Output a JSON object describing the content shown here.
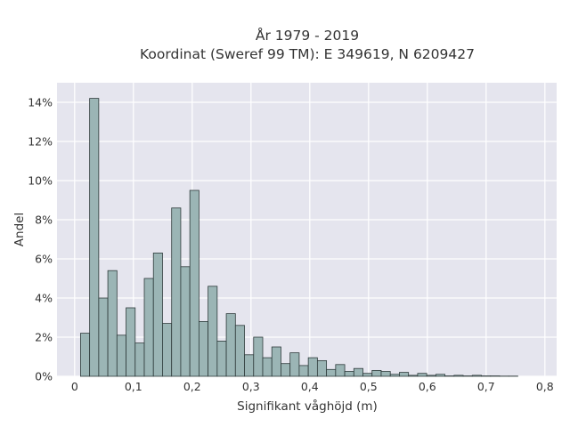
{
  "chart_data": {
    "type": "bar",
    "title": "År 1979 - 2019",
    "subtitle": "Koordinat (Sweref 99 TM): E 349619, N 6209427",
    "xlabel": "Signifikant våghöjd (m)",
    "ylabel": "Andel",
    "xlim": [
      -0.03,
      0.82
    ],
    "ylim": [
      0,
      15
    ],
    "x_ticks": [
      0,
      0.1,
      0.2,
      0.3,
      0.4,
      0.5,
      0.6,
      0.7,
      0.8
    ],
    "x_tick_labels": [
      "0",
      "0,1",
      "0,2",
      "0,3",
      "0,4",
      "0,5",
      "0,6",
      "0,7",
      "0,8"
    ],
    "y_ticks": [
      0,
      2,
      4,
      6,
      8,
      10,
      12,
      14
    ],
    "y_tick_labels": [
      "0%",
      "2%",
      "4%",
      "6%",
      "8%",
      "10%",
      "12%",
      "14%"
    ],
    "grid": true,
    "bin_width": 0.0155,
    "bin_start": 0.01,
    "values": [
      2.2,
      14.2,
      4.0,
      5.4,
      2.1,
      3.5,
      1.7,
      5.0,
      6.3,
      2.7,
      8.6,
      5.6,
      9.5,
      2.8,
      4.6,
      1.8,
      3.2,
      2.6,
      1.1,
      2.0,
      0.95,
      1.5,
      0.65,
      1.2,
      0.55,
      0.95,
      0.8,
      0.35,
      0.6,
      0.25,
      0.4,
      0.15,
      0.3,
      0.25,
      0.1,
      0.2,
      0.05,
      0.15,
      0.05,
      0.1,
      0.02,
      0.05,
      0.02,
      0.05,
      0.02,
      0.02,
      0.01,
      0.01
    ],
    "colors": {
      "bar_fill": "#9bb5b5",
      "bar_edge": "#2e3b3b",
      "plot_bg": "#e5e5ee",
      "grid": "#ffffff"
    }
  }
}
